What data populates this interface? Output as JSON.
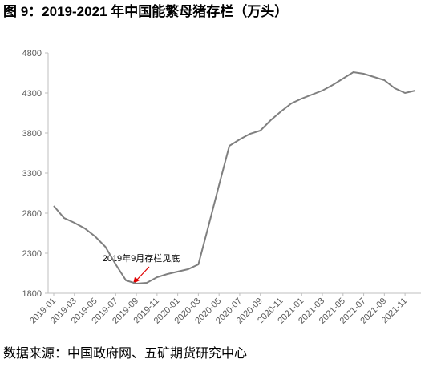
{
  "chart_data": {
    "type": "line",
    "title": "图 9：2019-2021 年中国能繁母猪存栏（万头）",
    "source": "数据来源：中国政府网、五矿期货研究中心",
    "annotation": "2019年9月存栏见底",
    "categories": [
      "2019-01",
      null,
      "2019-03",
      null,
      "2019-05",
      null,
      "2019-07",
      null,
      "2019-09",
      null,
      "2019-11",
      null,
      "2020-01",
      null,
      "2020-03",
      null,
      "2020-05",
      null,
      "2020-07",
      null,
      "2020-09",
      null,
      "2020-11",
      null,
      "2021-01",
      null,
      "2021-03",
      null,
      "2021-05",
      null,
      "2021-07",
      null,
      "2021-09",
      null,
      "2021-11",
      null
    ],
    "series": [
      {
        "name": "能繁母猪存栏",
        "color": "#7f7f7f",
        "values": [
          2890,
          2740,
          2680,
          2610,
          2510,
          2380,
          2160,
          1960,
          1920,
          1930,
          2000,
          2040,
          2070,
          2100,
          2160,
          2650,
          3150,
          3640,
          3720,
          3790,
          3830,
          3960,
          4070,
          4170,
          4230,
          4280,
          4330,
          4400,
          4480,
          4560,
          4540,
          4500,
          4460,
          4360,
          4300,
          4330
        ]
      }
    ],
    "ylim": [
      1800,
      4800
    ],
    "yticks": [
      1800,
      2300,
      2800,
      3300,
      3800,
      4300,
      4800
    ]
  }
}
